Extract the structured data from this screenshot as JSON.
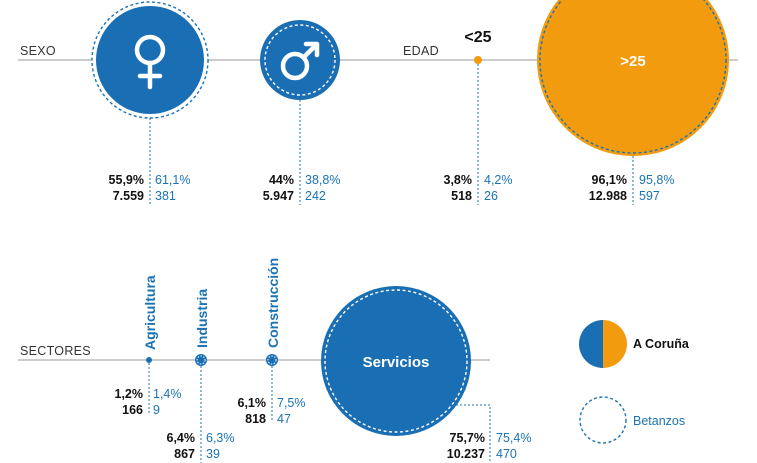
{
  "colors": {
    "coruna_blue": "#1a6eb3",
    "orange": "#f29b0f",
    "betanzos_dashed": "#1a73b5",
    "axis": "#9a9a9a",
    "text": "#111111"
  },
  "chart_data": [
    {
      "type": "bubble",
      "axis_label": "SEXO",
      "categories": [
        {
          "key": "mujer",
          "label": "",
          "icon": "female-symbol-icon",
          "coruna_pct": "55,9%",
          "coruna_count": "7.559",
          "betanzos_pct": "61,1%",
          "betanzos_count": "381",
          "coruna_value": 55.9,
          "betanzos_value": 61.1,
          "color": "#1a6eb3"
        },
        {
          "key": "hombre",
          "label": "",
          "icon": "male-symbol-icon",
          "coruna_pct": "44%",
          "coruna_count": "5.947",
          "betanzos_pct": "38,8%",
          "betanzos_count": "242",
          "coruna_value": 44,
          "betanzos_value": 38.8,
          "color": "#1a6eb3"
        }
      ]
    },
    {
      "type": "bubble",
      "axis_label": "EDAD",
      "categories": [
        {
          "key": "menor25",
          "label": "<25",
          "coruna_pct": "3,8%",
          "coruna_count": "518",
          "betanzos_pct": "4,2%",
          "betanzos_count": "26",
          "coruna_value": 3.8,
          "betanzos_value": 4.2,
          "color": "#f29b0f"
        },
        {
          "key": "mayor25",
          "label": ">25",
          "coruna_pct": "96,1%",
          "coruna_count": "12.988",
          "betanzos_pct": "95,8%",
          "betanzos_count": "597",
          "coruna_value": 96.1,
          "betanzos_value": 95.8,
          "color": "#f29b0f"
        }
      ]
    },
    {
      "type": "bubble",
      "axis_label": "SECTORES",
      "categories": [
        {
          "key": "agricultura",
          "label": "Agricultura",
          "coruna_pct": "1,2%",
          "coruna_count": "166",
          "betanzos_pct": "1,4%",
          "betanzos_count": "9",
          "coruna_value": 1.2,
          "betanzos_value": 1.4,
          "color": "#1a6eb3"
        },
        {
          "key": "industria",
          "label": "Industria",
          "coruna_pct": "6,4%",
          "coruna_count": "867",
          "betanzos_pct": "6,3%",
          "betanzos_count": "39",
          "coruna_value": 6.4,
          "betanzos_value": 6.3,
          "color": "#1a6eb3"
        },
        {
          "key": "construccion",
          "label": "Construcción",
          "coruna_pct": "6,1%",
          "coruna_count": "818",
          "betanzos_pct": "7,5%",
          "betanzos_count": "47",
          "coruna_value": 6.1,
          "betanzos_value": 7.5,
          "color": "#1a6eb3"
        },
        {
          "key": "servicios",
          "label": "Servicios",
          "coruna_pct": "75,7%",
          "coruna_count": "10.237",
          "betanzos_pct": "75,4%",
          "betanzos_count": "470",
          "coruna_value": 75.7,
          "betanzos_value": 75.4,
          "color": "#1a6eb3"
        }
      ]
    }
  ],
  "legend": [
    {
      "name": "A Coruña",
      "style": "half-blue-half-orange"
    },
    {
      "name": "Betanzos",
      "style": "dashed-outline"
    }
  ]
}
